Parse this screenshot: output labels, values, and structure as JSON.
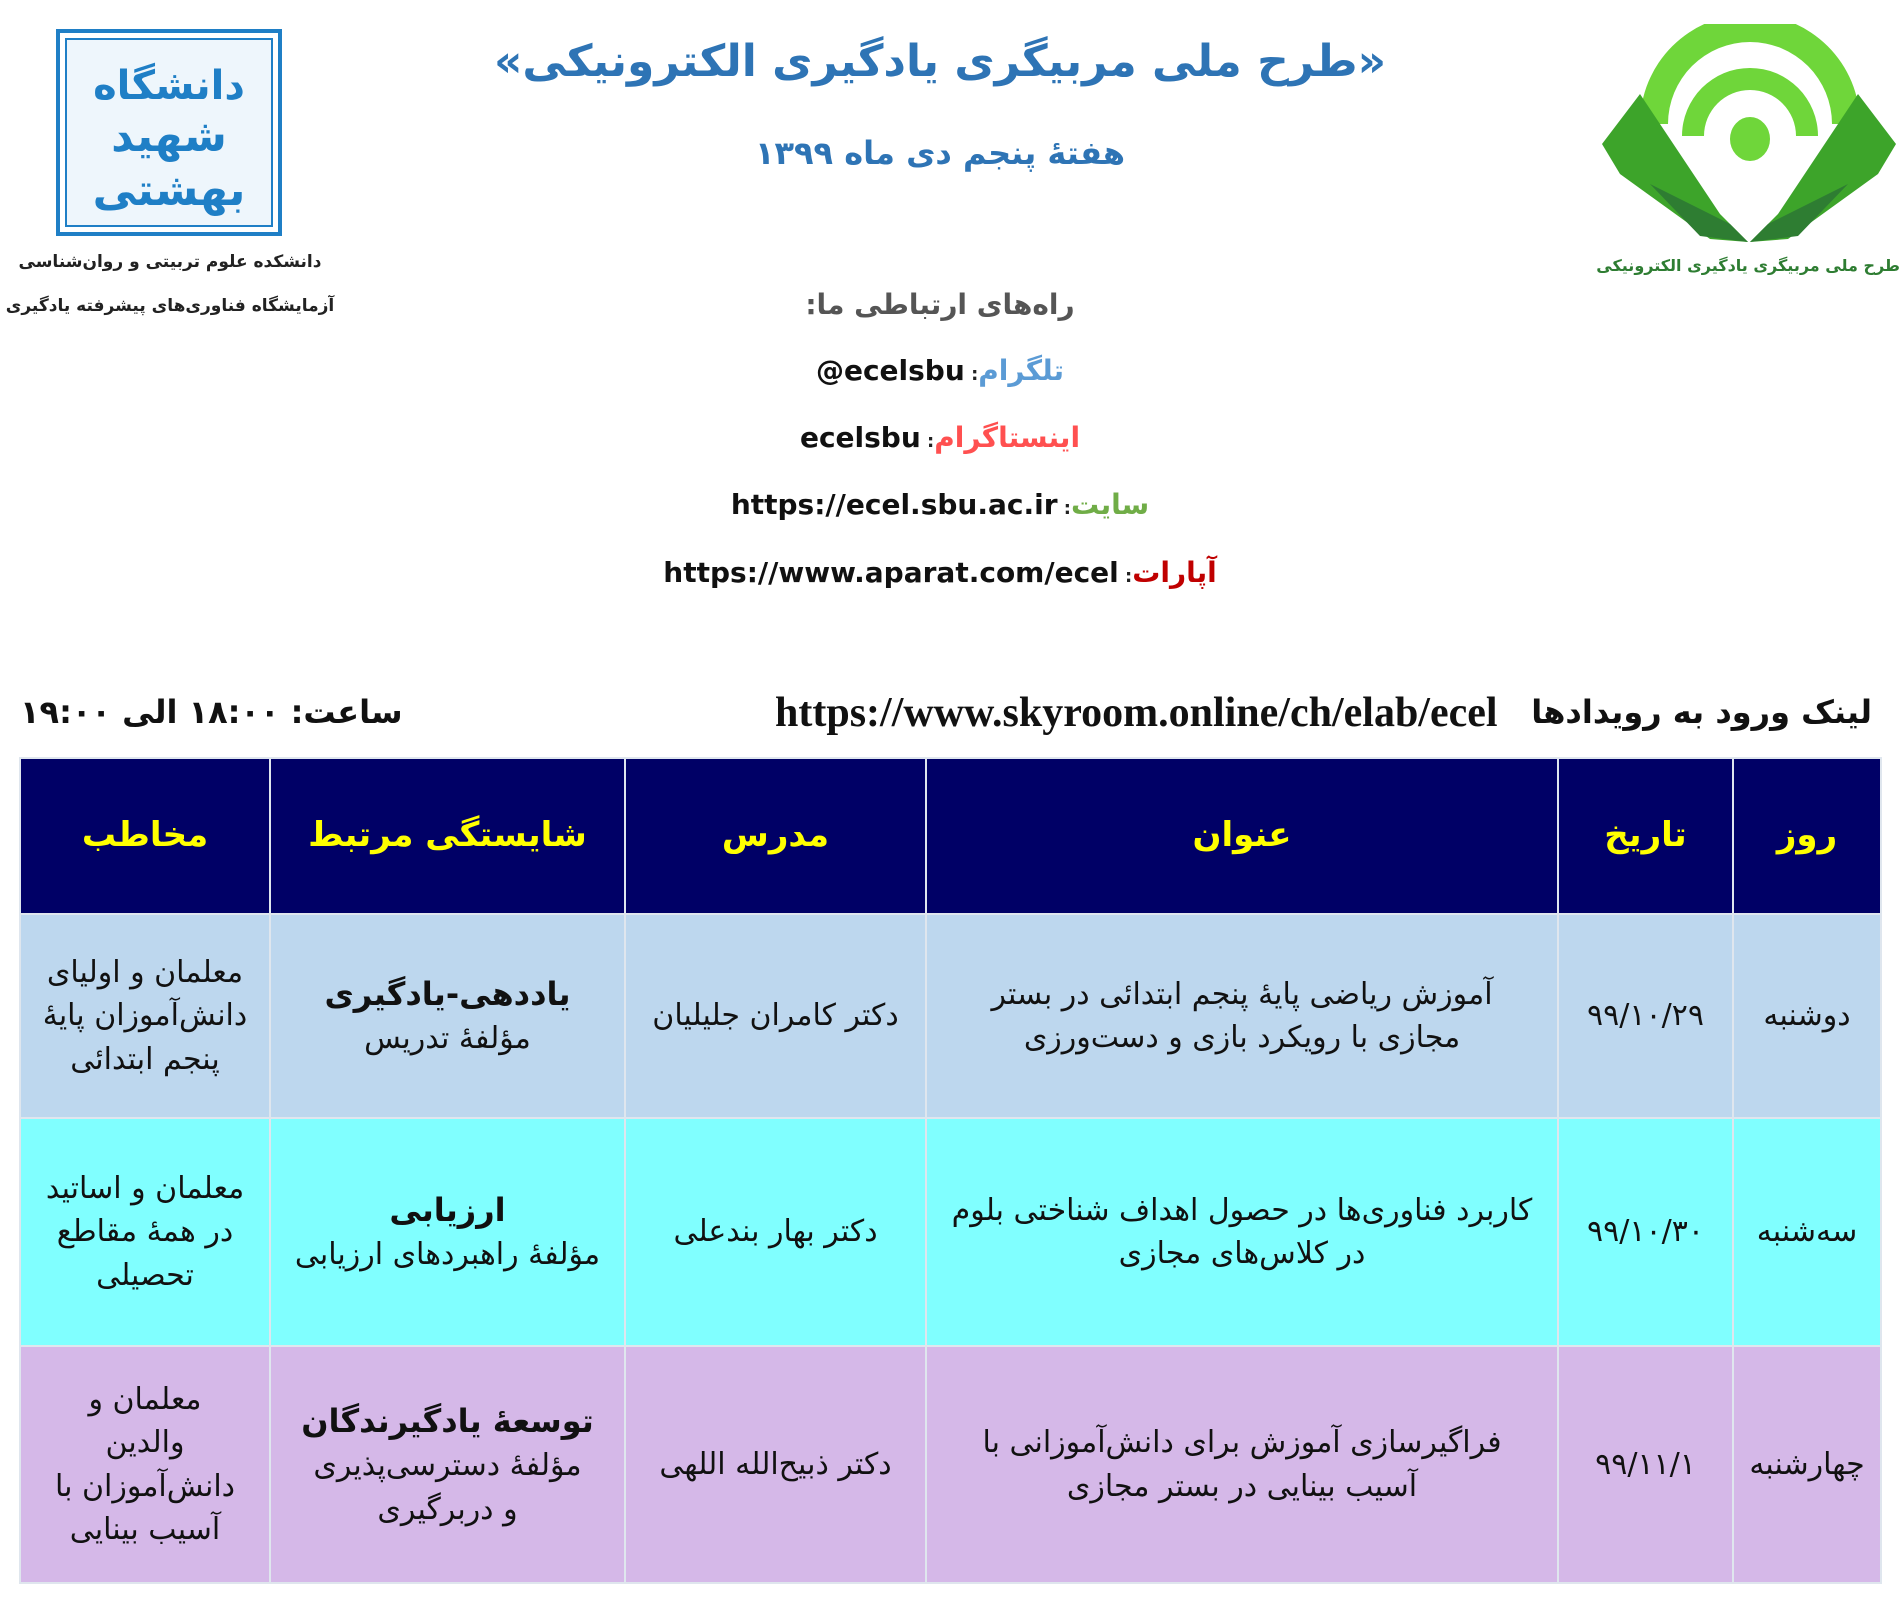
{
  "header": {
    "title": "«طرح ملی مربیگری یادگیری الکترونیکی»",
    "subtitle": "هفتهٔ پنجم دی ماه ۱۳۹۹",
    "left_logo_text": "دانشگاه شهید بهشتی",
    "left_caption_1": "دانشکده علوم تربیتی و روان‌شناسی",
    "left_caption_2": "آزمایشگاه فناوری‌های پیشرفته یادگیری",
    "right_caption": "طرح ملی مربیگری یادگیری الکترونیکی"
  },
  "contact": {
    "heading": "راه‌های ارتباطی ما:",
    "items": [
      {
        "label": "تلگرام",
        "value": "@ecelsbu",
        "color": "#5b9bd5"
      },
      {
        "label": "اینستاگرام",
        "value": "ecelsbu",
        "color": "#ff5050"
      },
      {
        "label": "سایت",
        "value": "https://ecel.sbu.ac.ir",
        "color": "#70ad47"
      },
      {
        "label": "آپارات",
        "value": "https://www.aparat.com/ecel",
        "color": "#c00000"
      }
    ]
  },
  "events": {
    "link_label": "لینک ورود به رویدادها",
    "link_url": "https://www.skyroom.online/ch/elab/ecel",
    "time": "ساعت: ۱۸:۰۰ الی ۱۹:۰۰"
  },
  "table": {
    "headers": [
      "روز",
      "تاریخ",
      "عنوان",
      "مدرس",
      "شایستگی مرتبط",
      "مخاطب"
    ],
    "rows": [
      {
        "day": "دوشنبه",
        "date": "۹۹/۱۰/۲۹",
        "title": [
          "آموزش ریاضی پایهٔ پنجم ابتدائی در بستر",
          "مجازی با رویکرد بازی و دست‌ورزی"
        ],
        "teacher": "دکتر کامران جلیلیان",
        "competency": "یاددهی-یادگیری",
        "component": [
          "مؤلفهٔ تدریس"
        ],
        "audience": [
          "معلمان و اولیای",
          "دانش‌آموزان پایهٔ",
          "پنجم ابتدائی"
        ],
        "bg": "#bdd7ee"
      },
      {
        "day": "سه‌شنبه",
        "date": "۹۹/۱۰/۳۰",
        "title": [
          "کاربرد فناوری‌ها در حصول اهداف شناختی بلوم",
          "در کلاس‌های مجازی"
        ],
        "teacher": "دکتر بهار بندعلی",
        "competency": "ارزیابی",
        "component": [
          "مؤلفهٔ راهبردهای ارزیابی"
        ],
        "audience": [
          "معلمان و اساتید",
          "در همهٔ مقاطع",
          "تحصیلی"
        ],
        "bg": "#80ffff"
      },
      {
        "day": "چهارشنبه",
        "date": "۹۹/۱۱/۱",
        "title": [
          "فراگیرسازی آموزش برای دانش‌آموزانی با",
          "آسیب بینایی در بستر مجازی"
        ],
        "teacher": "دکتر ذبیح‌الله اللهی",
        "competency": "توسعهٔ یادگیرندگان",
        "component": [
          "مؤلفهٔ دسترسی‌پذیری",
          "و دربرگیری"
        ],
        "audience": [
          "معلمان و",
          "والدین",
          "دانش‌آموزان با",
          "آسیب بینایی"
        ],
        "bg": "#d5b8e8"
      }
    ]
  },
  "colors": {
    "header_bg": "#000066",
    "header_text": "#ffff00",
    "title": "#2e74b5"
  }
}
